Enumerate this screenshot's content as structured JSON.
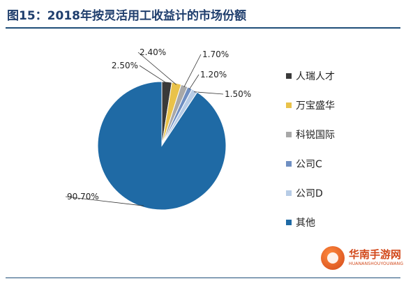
{
  "header": {
    "title": "图15：2018年按灵活用工收益计的市场份额"
  },
  "chart_data": {
    "type": "pie",
    "title": "图15：2018年按灵活用工收益计的市场份额",
    "legend_position": "right",
    "slices": [
      {
        "name": "人瑞人才",
        "value": 2.5,
        "label": "2.50%",
        "color": "#3a3a3a"
      },
      {
        "name": "万宝盛华",
        "value": 2.4,
        "label": "2.40%",
        "color": "#e9c24a"
      },
      {
        "name": "科锐国际",
        "value": 1.7,
        "label": "1.70%",
        "color": "#a8a8a8"
      },
      {
        "name": "公司C",
        "value": 1.2,
        "label": "1.20%",
        "color": "#6f8fc2"
      },
      {
        "name": "公司D",
        "value": 1.5,
        "label": "1.50%",
        "color": "#b7cce6"
      },
      {
        "name": "其他",
        "value": 90.7,
        "label": "90.70%",
        "color": "#1f6aa5"
      }
    ]
  },
  "watermark": {
    "brand": "华南手游网",
    "sub": "HUANANSHOUYOUWANG"
  }
}
